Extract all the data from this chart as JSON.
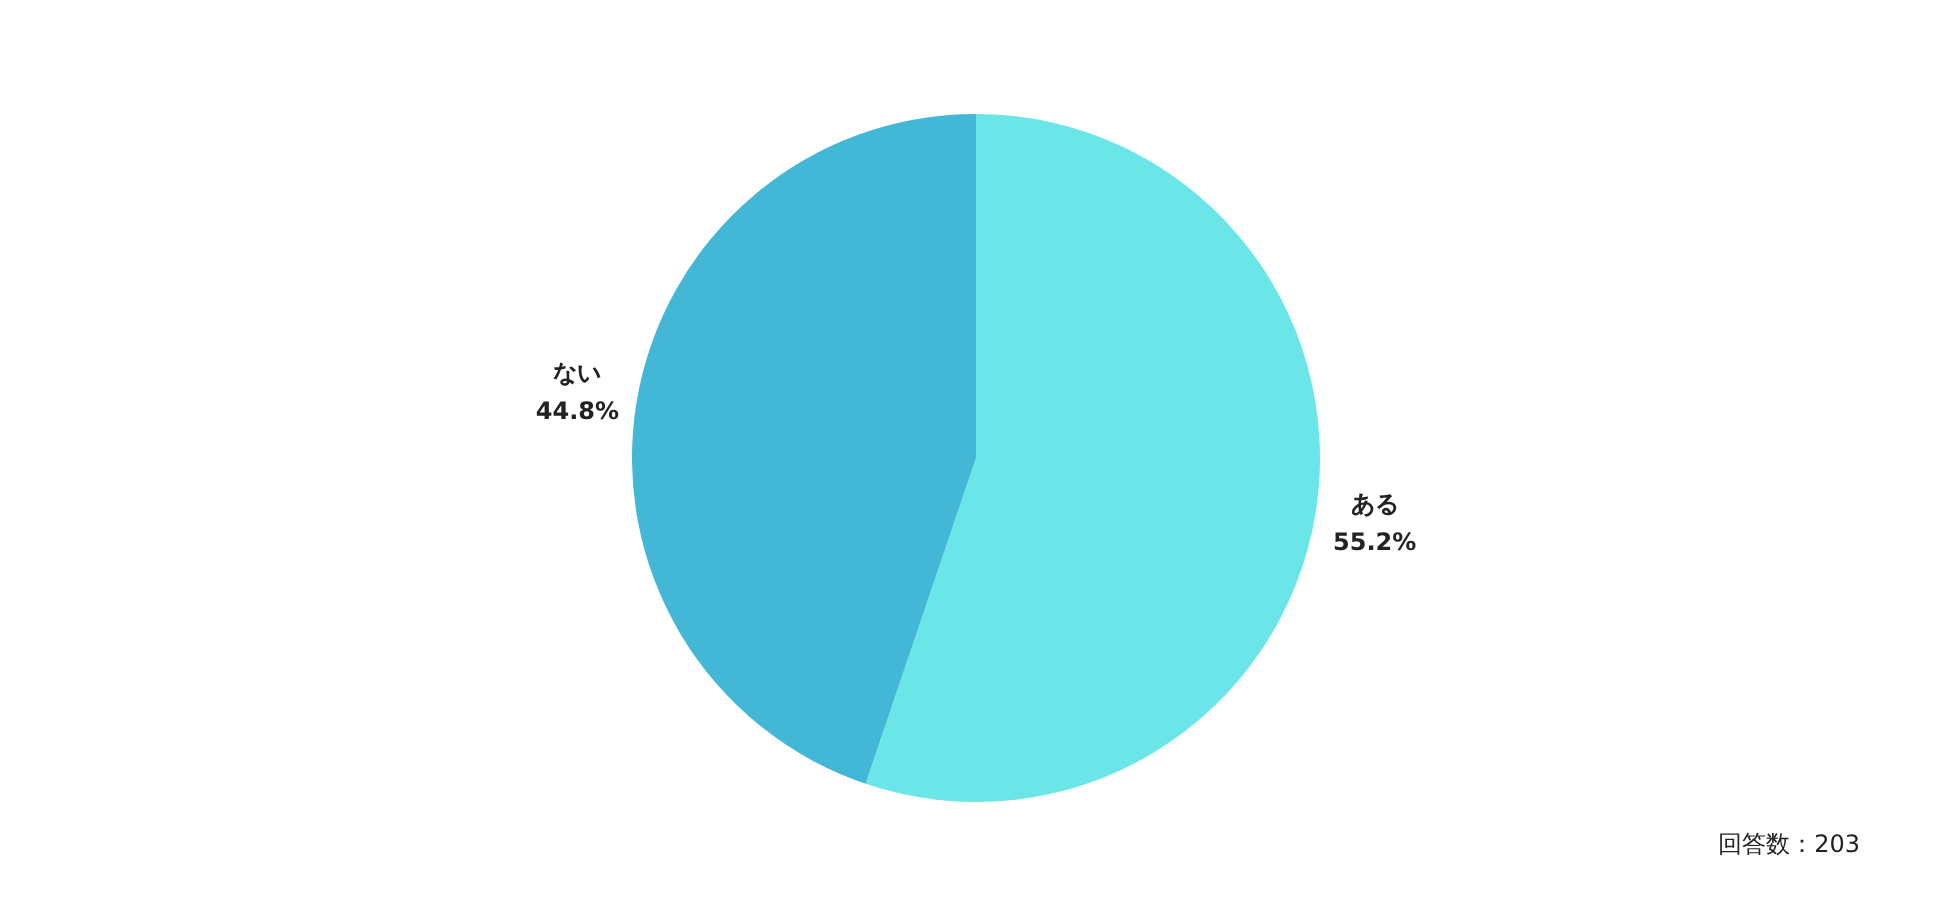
{
  "chart_data": {
    "type": "pie",
    "categories": [
      "ある",
      "ない"
    ],
    "values": [
      55.2,
      44.8
    ],
    "value_labels": [
      "55.2%",
      "44.8%"
    ],
    "colors": [
      "#6ae5e8",
      "#43b8d6"
    ],
    "legend": false,
    "annotations": [
      "回答数：203"
    ]
  }
}
